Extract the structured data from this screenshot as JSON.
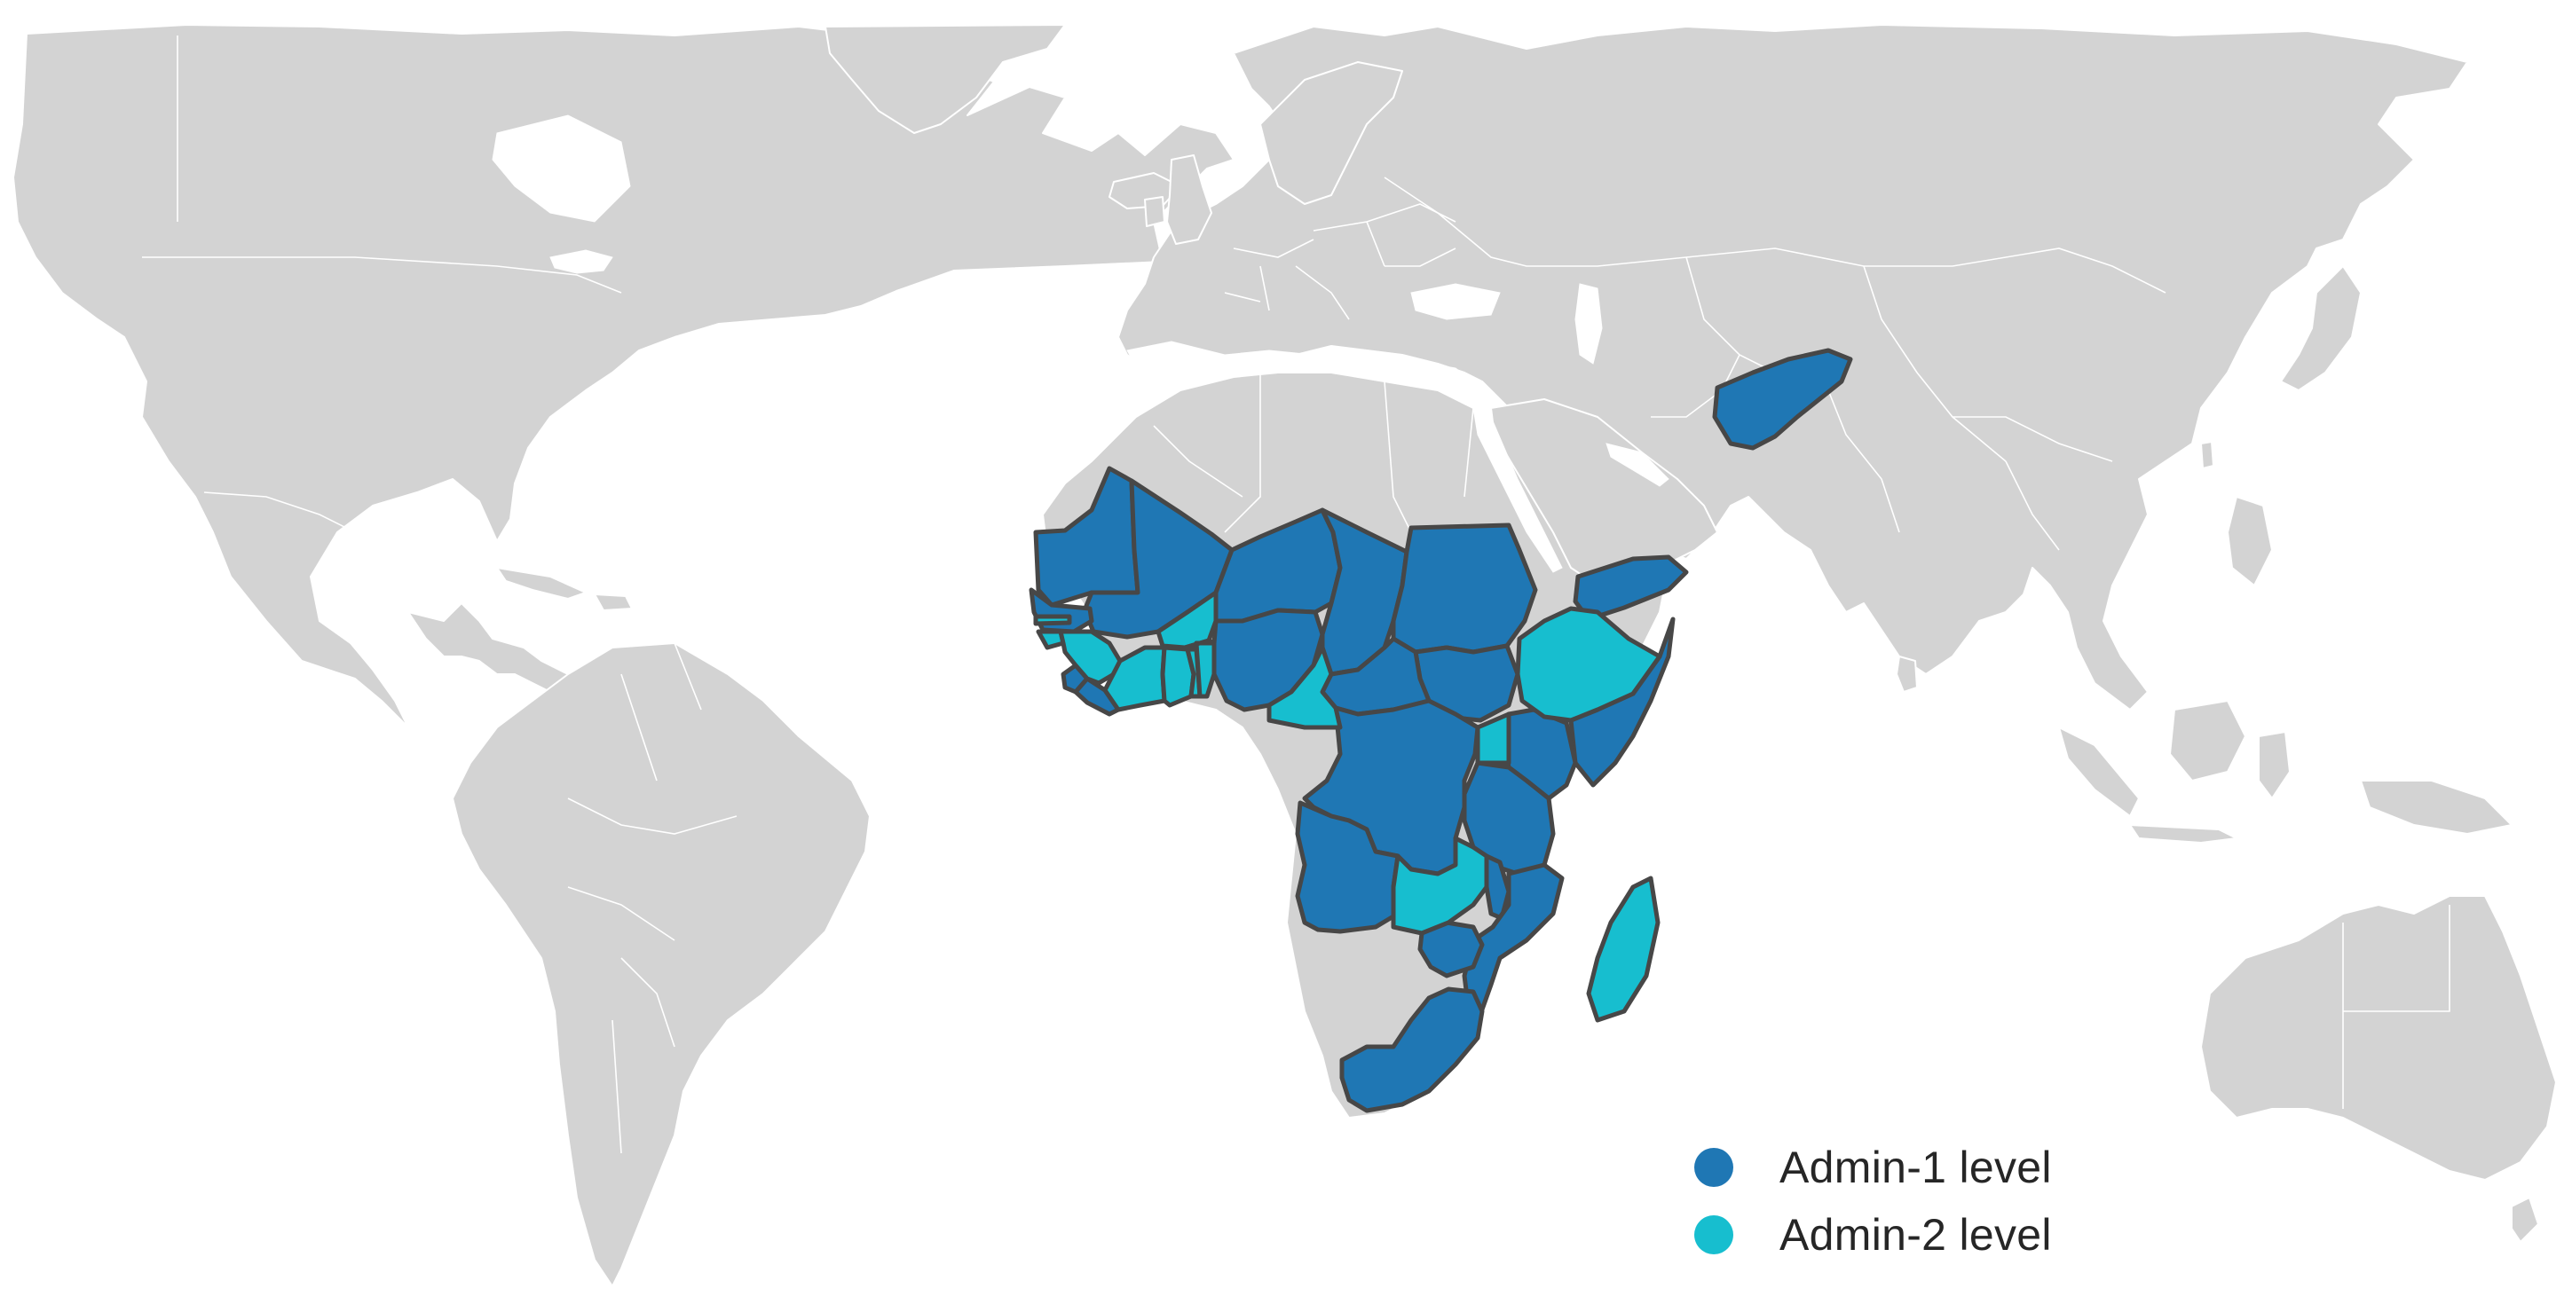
{
  "colors": {
    "background": "#ffffff",
    "land": "#d3d3d3",
    "border": "#ffffff",
    "highlight_outline": "#474747",
    "admin1": "#1f77b4",
    "admin2": "#17becf"
  },
  "legend": {
    "items": [
      {
        "label": "Admin-1 level",
        "color": "#1f77b4",
        "icon": "filled-circle"
      },
      {
        "label": "Admin-2 level",
        "color": "#17becf",
        "icon": "filled-circle"
      }
    ]
  },
  "regions": {
    "admin1": [
      "Afghanistan",
      "Yemen",
      "Mauritania",
      "Mali",
      "Senegal",
      "Sierra Leone",
      "Liberia",
      "Nigeria",
      "Niger",
      "Chad",
      "Sudan",
      "South Sudan",
      "Central African Republic",
      "Somalia",
      "DR Congo",
      "Kenya",
      "Tanzania",
      "Angola",
      "Mozambique",
      "Zimbabwe",
      "South Africa",
      "Malawi"
    ],
    "admin2": [
      "Burkina Faso",
      "Guinea",
      "The Gambia",
      "Guinea-Bissau",
      "Côte d'Ivoire",
      "Ghana",
      "Togo",
      "Benin",
      "Cameroon",
      "Ethiopia",
      "Uganda",
      "Zambia",
      "Madagascar"
    ]
  }
}
